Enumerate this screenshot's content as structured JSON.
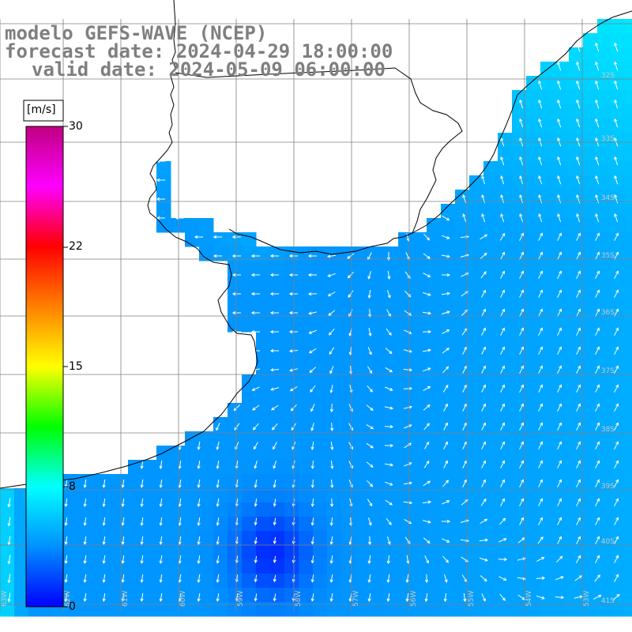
{
  "title": {
    "line1": "modelo GEFS-WAVE (NCEP)",
    "line2": "forecast date: 2024-04-29 18:00:00",
    "line3": "valid date: 2024-05-09 06:00:00"
  },
  "colorbar": {
    "unit": "[m/s]",
    "ticks": [
      "30",
      "22",
      "15",
      "8",
      "0"
    ],
    "min": 0,
    "max": 30,
    "colors": [
      "#0000ff",
      "#0090ff",
      "#00ffff",
      "#00ff00",
      "#ffff00",
      "#ff8000",
      "#ff0000",
      "#ff00ff",
      "#c00080"
    ]
  },
  "map": {
    "land_color": "#ffffff",
    "coastline_color": "#000000",
    "grid_color": "#808080",
    "vector_color": "#ffffff",
    "lat_labels": [
      "32S",
      "33S",
      "34S",
      "35S",
      "36S",
      "37S",
      "38S",
      "39S",
      "40S",
      "41S"
    ],
    "lon_labels": [
      "63W",
      "62W",
      "61W",
      "60W",
      "59W",
      "58W",
      "57W",
      "56W",
      "55W",
      "54W",
      "53W"
    ]
  }
}
